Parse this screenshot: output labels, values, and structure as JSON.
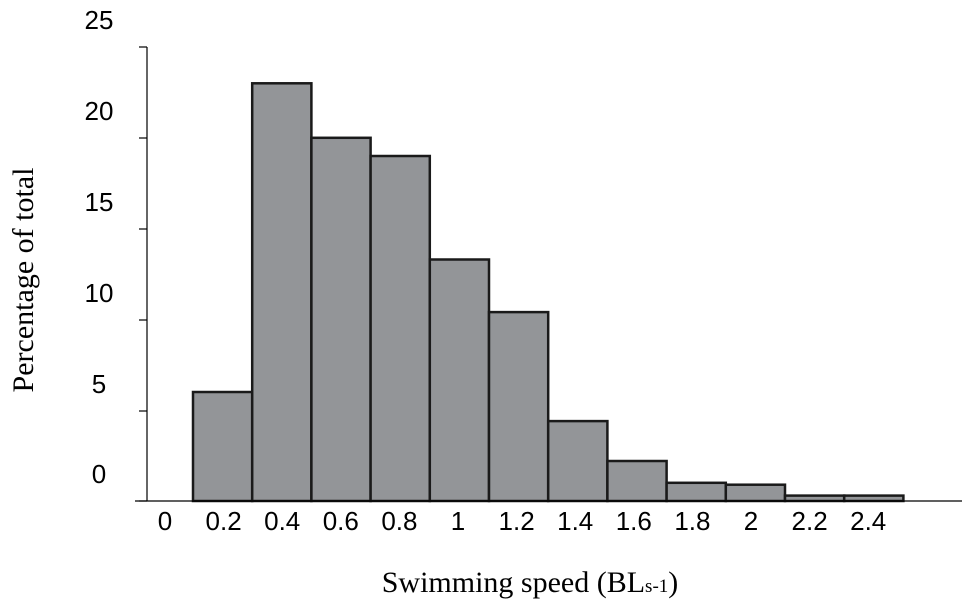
{
  "chart_data": {
    "type": "bar",
    "categories": [
      "0",
      "0.2",
      "0.4",
      "0.6",
      "0.8",
      "1",
      "1.2",
      "1.4",
      "1.6",
      "1.8",
      "2",
      "2.2",
      "2.4"
    ],
    "values": [
      0,
      6,
      23,
      20,
      19,
      13.3,
      10.4,
      4.4,
      2.2,
      1,
      0.9,
      0.3,
      0.3
    ],
    "yticks": [
      "25",
      "20",
      "15",
      "10",
      "5",
      "0"
    ],
    "ylim": [
      0,
      25
    ],
    "xlabel": "Swimming speed (BLs-1)",
    "xlabel_main": "Swimming speed (BL",
    "xlabel_sub": "s-1",
    "xlabel_close": ")",
    "ylabel": "Percentage of total",
    "grid": false,
    "colors": {
      "bar_fill": "#939598",
      "bar_stroke": "#1a1a1a"
    }
  }
}
